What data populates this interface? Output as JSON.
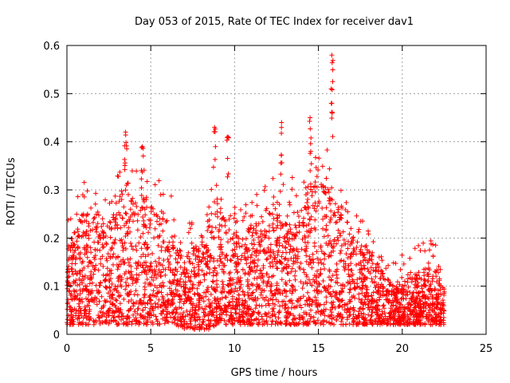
{
  "chart_data": {
    "type": "scatter",
    "title": "Day 053 of 2015, Rate Of TEC Index for receiver dav1",
    "xlabel": "GPS time / hours",
    "ylabel": "ROTI / TECUs",
    "xlim": [
      0,
      25
    ],
    "ylim": [
      0,
      0.6
    ],
    "x_ticks": [
      0,
      5,
      10,
      15,
      20,
      25
    ],
    "x_tick_labels": [
      "0",
      "5",
      "10",
      "15",
      "20",
      "25"
    ],
    "y_ticks": [
      0,
      0.1,
      0.2,
      0.3,
      0.4,
      0.5,
      0.6
    ],
    "y_tick_labels": [
      "0",
      "0.1",
      "0.2",
      "0.3",
      "0.4",
      "0.5",
      "0.6"
    ],
    "grid": true,
    "marker": "+",
    "color": "#ff0000",
    "series": [
      {
        "name": "ROTI",
        "x_range": [
          0,
          22.5
        ],
        "envelope": {
          "hours": [
            0,
            0.5,
            1,
            1.5,
            2,
            2.5,
            3,
            3.5,
            4,
            4.5,
            5,
            5.5,
            6,
            6.5,
            7,
            7.5,
            8,
            8.5,
            9,
            9.5,
            10,
            10.5,
            11,
            11.5,
            12,
            12.5,
            13,
            13.5,
            14,
            14.5,
            15,
            15.5,
            16,
            16.5,
            17,
            17.5,
            18,
            18.5,
            19,
            19.5,
            20,
            20.5,
            21,
            21.5,
            22,
            22.5
          ],
          "typical_max": [
            0.18,
            0.22,
            0.26,
            0.25,
            0.26,
            0.24,
            0.27,
            0.33,
            0.28,
            0.3,
            0.27,
            0.26,
            0.25,
            0.2,
            0.16,
            0.18,
            0.2,
            0.25,
            0.26,
            0.24,
            0.21,
            0.2,
            0.23,
            0.25,
            0.27,
            0.3,
            0.25,
            0.27,
            0.3,
            0.32,
            0.31,
            0.33,
            0.28,
            0.24,
            0.22,
            0.2,
            0.18,
            0.15,
            0.12,
            0.1,
            0.11,
            0.12,
            0.13,
            0.14,
            0.13,
            0.1
          ],
          "typical_min": [
            0.02,
            0.02,
            0.02,
            0.02,
            0.02,
            0.02,
            0.02,
            0.02,
            0.02,
            0.02,
            0.02,
            0.02,
            0.02,
            0.02,
            0.01,
            0.01,
            0.01,
            0.01,
            0.02,
            0.02,
            0.02,
            0.02,
            0.02,
            0.02,
            0.02,
            0.02,
            0.02,
            0.02,
            0.02,
            0.02,
            0.02,
            0.02,
            0.02,
            0.02,
            0.02,
            0.02,
            0.02,
            0.02,
            0.02,
            0.02,
            0.02,
            0.02,
            0.02,
            0.02,
            0.02,
            0.02
          ]
        },
        "notable_peaks": [
          {
            "x": 3.5,
            "y": 0.42
          },
          {
            "x": 4.5,
            "y": 0.39
          },
          {
            "x": 8.8,
            "y": 0.43
          },
          {
            "x": 9.6,
            "y": 0.41
          },
          {
            "x": 12.8,
            "y": 0.44
          },
          {
            "x": 14.5,
            "y": 0.45
          },
          {
            "x": 15.8,
            "y": 0.58
          },
          {
            "x": 15.8,
            "y": 0.48
          }
        ]
      }
    ]
  }
}
